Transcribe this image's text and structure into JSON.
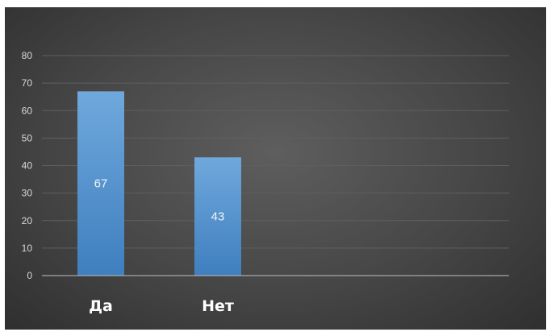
{
  "chart_data": {
    "type": "bar",
    "categories": [
      "Да",
      "Нет"
    ],
    "series": [
      {
        "values": [
          67,
          43
        ]
      }
    ],
    "data_labels": [
      "67",
      "43"
    ],
    "ylim": [
      0,
      80
    ],
    "yticks": [
      0,
      10,
      20,
      30,
      40,
      50,
      60,
      70,
      80
    ],
    "grid": true,
    "legend": "none",
    "colors": {
      "bar": "#5b9bd5",
      "bar_dark": "#3f7fbf",
      "background": "#474747",
      "grid": "#5f5f5f",
      "axis": "#bfbfbf",
      "tick_text": "#d9d9d9",
      "category_text": "#ffffff"
    }
  }
}
